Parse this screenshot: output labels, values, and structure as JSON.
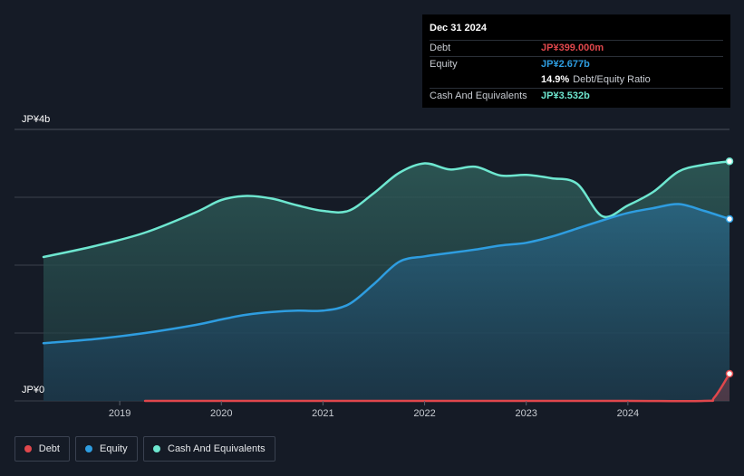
{
  "tooltip": {
    "date": "Dec 31 2024",
    "debt_label": "Debt",
    "debt_value": "JP¥399.000m",
    "equity_label": "Equity",
    "equity_value": "JP¥2.677b",
    "ratio_value": "14.9%",
    "ratio_label": "Debt/Equity Ratio",
    "cash_label": "Cash And Equivalents",
    "cash_value": "JP¥3.532b"
  },
  "legend": {
    "debt": "Debt",
    "equity": "Equity",
    "cash": "Cash And Equivalents"
  },
  "colors": {
    "background": "#151b26",
    "debt": "#e0474c",
    "equity": "#2e9de0",
    "cash": "#6ee7d0",
    "grid": "#3a404c"
  },
  "chart_data": {
    "type": "area",
    "y_unit": "JP¥",
    "ylim": [
      0,
      4
    ],
    "y_tick_labels": [
      "JP¥0",
      "JP¥4b"
    ],
    "x_tick_labels": [
      "2019",
      "2020",
      "2021",
      "2022",
      "2023",
      "2024"
    ],
    "xlim": [
      2018.25,
      2025.0
    ],
    "grid": true,
    "legend_position": "bottom-left",
    "series": [
      {
        "name": "Cash And Equivalents",
        "unit": "billion JP¥",
        "x": [
          2018.25,
          2018.75,
          2019.25,
          2019.75,
          2020.0,
          2020.25,
          2020.5,
          2020.75,
          2021.0,
          2021.25,
          2021.5,
          2021.75,
          2022.0,
          2022.25,
          2022.5,
          2022.75,
          2023.0,
          2023.25,
          2023.5,
          2023.75,
          2024.0,
          2024.25,
          2024.5,
          2024.75,
          2025.0
        ],
        "values": [
          2.12,
          2.28,
          2.48,
          2.78,
          2.96,
          3.02,
          2.98,
          2.88,
          2.8,
          2.8,
          3.06,
          3.36,
          3.5,
          3.41,
          3.45,
          3.32,
          3.33,
          3.28,
          3.2,
          2.72,
          2.88,
          3.08,
          3.38,
          3.48,
          3.53
        ]
      },
      {
        "name": "Equity",
        "unit": "billion JP¥",
        "x": [
          2018.25,
          2018.75,
          2019.25,
          2019.75,
          2020.0,
          2020.25,
          2020.5,
          2020.75,
          2021.0,
          2021.25,
          2021.5,
          2021.75,
          2022.0,
          2022.25,
          2022.5,
          2022.75,
          2023.0,
          2023.25,
          2023.5,
          2023.75,
          2024.0,
          2024.25,
          2024.5,
          2024.75,
          2025.0
        ],
        "values": [
          0.85,
          0.91,
          1.0,
          1.12,
          1.2,
          1.27,
          1.31,
          1.33,
          1.33,
          1.42,
          1.72,
          2.05,
          2.13,
          2.18,
          2.23,
          2.29,
          2.33,
          2.42,
          2.54,
          2.66,
          2.77,
          2.84,
          2.9,
          2.8,
          2.68
        ]
      },
      {
        "name": "Debt",
        "unit": "billion JP¥",
        "x": [
          2019.25,
          2020.0,
          2021.0,
          2022.0,
          2023.0,
          2024.0,
          2024.75,
          2024.85,
          2025.0
        ],
        "values": [
          0.0,
          0.0,
          0.0,
          0.0,
          0.0,
          0.0,
          0.0,
          0.05,
          0.4
        ]
      }
    ]
  }
}
